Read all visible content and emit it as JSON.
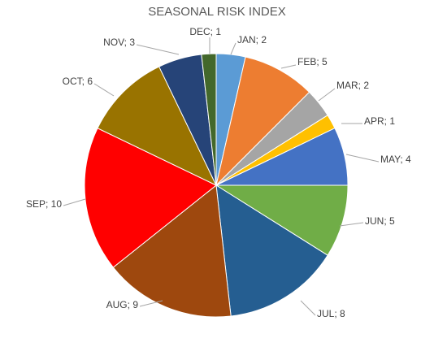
{
  "chart_data": {
    "type": "pie",
    "title": "SEASONAL RISK INDEX",
    "categories": [
      "JAN",
      "FEB",
      "MAR",
      "APR",
      "MAY",
      "JUN",
      "JUL",
      "AUG",
      "SEP",
      "OCT",
      "NOV",
      "DEC"
    ],
    "values": [
      2,
      5,
      2,
      1,
      4,
      5,
      8,
      9,
      10,
      6,
      3,
      1
    ],
    "colors": [
      "#5b9bd5",
      "#ed7d31",
      "#a5a5a5",
      "#ffc000",
      "#4472c4",
      "#70ad47",
      "#255e91",
      "#9e480e",
      "#ff0000",
      "#997300",
      "#264478",
      "#43682b"
    ],
    "data_labels": [
      "JAN; 2",
      "FEB; 5",
      "MAR; 2",
      "APR; 1",
      "MAY; 4",
      "JUN; 5",
      "JUL; 8",
      "AUG; 9",
      "SEP; 10",
      "OCT; 6",
      "NOV; 3",
      "DEC; 1"
    ],
    "start_angle": "12 o'clock",
    "direction": "clockwise",
    "legend": "none"
  }
}
